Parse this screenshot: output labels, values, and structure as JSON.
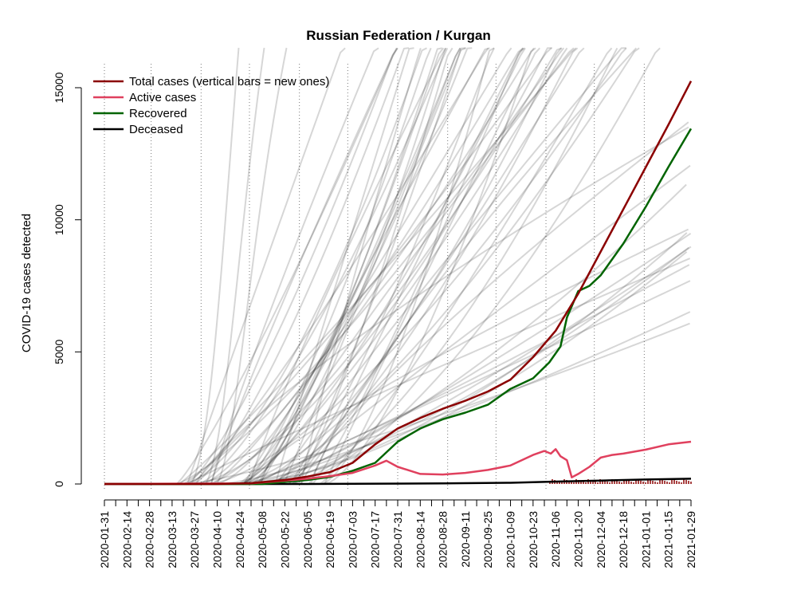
{
  "chart_data": {
    "type": "line",
    "title": "Russian Federation / Kurgan",
    "ylabel": "COVID-19 cases detected",
    "xlabel": "",
    "xlim": [
      "2020-01-31",
      "2021-01-29"
    ],
    "ylim": [
      0,
      15000
    ],
    "y_ticks": [
      0,
      5000,
      10000,
      15000
    ],
    "x_tick_labels": [
      "2020-01-31",
      "2020-02-14",
      "2020-02-28",
      "2020-03-13",
      "2020-03-27",
      "2020-04-10",
      "2020-04-24",
      "2020-05-08",
      "2020-05-22",
      "2020-06-05",
      "2020-06-19",
      "2020-07-03",
      "2020-07-17",
      "2020-07-31",
      "2020-08-14",
      "2020-08-28",
      "2020-09-11",
      "2020-09-25",
      "2020-10-09",
      "2020-10-23",
      "2020-11-06",
      "2020-11-20",
      "2020-12-04",
      "2020-12-18",
      "2021-01-01",
      "2021-01-15",
      "2021-01-29"
    ],
    "vertical_dotted_lines_at": [
      "2020-01-31",
      "2020-02-29",
      "2020-03-31",
      "2020-04-30",
      "2020-05-31",
      "2020-06-30",
      "2020-07-31",
      "2020-08-31",
      "2020-09-30",
      "2020-10-31",
      "2020-11-30",
      "2020-12-31"
    ],
    "legend": {
      "position": "top-left",
      "entries": [
        {
          "label": "Total cases (vertical bars = new ones)",
          "color": "#8b0000"
        },
        {
          "label": "Active cases",
          "color": "#e0405e"
        },
        {
          "label": "Recovered",
          "color": "#006400"
        },
        {
          "label": "Deceased",
          "color": "#000000"
        }
      ]
    },
    "series": [
      {
        "name": "Total cases (vertical bars = new ones)",
        "color": "#8b0000",
        "points": [
          [
            "2020-01-31",
            0
          ],
          [
            "2020-04-10",
            0
          ],
          [
            "2020-05-01",
            30
          ],
          [
            "2020-05-22",
            150
          ],
          [
            "2020-06-05",
            280
          ],
          [
            "2020-06-19",
            450
          ],
          [
            "2020-07-03",
            800
          ],
          [
            "2020-07-17",
            1500
          ],
          [
            "2020-07-31",
            2100
          ],
          [
            "2020-08-14",
            2500
          ],
          [
            "2020-08-28",
            2850
          ],
          [
            "2020-09-11",
            3150
          ],
          [
            "2020-09-25",
            3500
          ],
          [
            "2020-10-09",
            3950
          ],
          [
            "2020-10-23",
            4800
          ],
          [
            "2020-11-06",
            5800
          ],
          [
            "2020-11-20",
            7200
          ],
          [
            "2020-12-04",
            8800
          ],
          [
            "2020-12-18",
            10400
          ],
          [
            "2021-01-01",
            12000
          ],
          [
            "2021-01-15",
            13600
          ],
          [
            "2021-01-29",
            15250
          ]
        ]
      },
      {
        "name": "Active cases",
        "color": "#e0405e",
        "points": [
          [
            "2020-01-31",
            0
          ],
          [
            "2020-05-01",
            25
          ],
          [
            "2020-05-22",
            130
          ],
          [
            "2020-06-05",
            200
          ],
          [
            "2020-06-19",
            300
          ],
          [
            "2020-07-03",
            420
          ],
          [
            "2020-07-17",
            700
          ],
          [
            "2020-07-24",
            880
          ],
          [
            "2020-07-31",
            650
          ],
          [
            "2020-08-14",
            380
          ],
          [
            "2020-08-28",
            360
          ],
          [
            "2020-09-11",
            420
          ],
          [
            "2020-09-25",
            530
          ],
          [
            "2020-10-09",
            700
          ],
          [
            "2020-10-23",
            1100
          ],
          [
            "2020-10-30",
            1250
          ],
          [
            "2020-11-03",
            1150
          ],
          [
            "2020-11-06",
            1320
          ],
          [
            "2020-11-09",
            1050
          ],
          [
            "2020-11-13",
            900
          ],
          [
            "2020-11-16",
            250
          ],
          [
            "2020-11-20",
            380
          ],
          [
            "2020-11-27",
            650
          ],
          [
            "2020-12-04",
            1000
          ],
          [
            "2020-12-11",
            1100
          ],
          [
            "2020-12-18",
            1150
          ],
          [
            "2021-01-01",
            1300
          ],
          [
            "2021-01-15",
            1500
          ],
          [
            "2021-01-29",
            1600
          ]
        ]
      },
      {
        "name": "Recovered",
        "color": "#006400",
        "points": [
          [
            "2020-01-31",
            0
          ],
          [
            "2020-05-08",
            0
          ],
          [
            "2020-05-22",
            80
          ],
          [
            "2020-06-05",
            150
          ],
          [
            "2020-06-19",
            270
          ],
          [
            "2020-07-03",
            500
          ],
          [
            "2020-07-17",
            800
          ],
          [
            "2020-07-31",
            1600
          ],
          [
            "2020-08-14",
            2100
          ],
          [
            "2020-08-28",
            2450
          ],
          [
            "2020-09-11",
            2700
          ],
          [
            "2020-09-25",
            3000
          ],
          [
            "2020-10-09",
            3600
          ],
          [
            "2020-10-23",
            4000
          ],
          [
            "2020-11-02",
            4600
          ],
          [
            "2020-11-09",
            5200
          ],
          [
            "2020-11-13",
            6300
          ],
          [
            "2020-11-20",
            7300
          ],
          [
            "2020-11-27",
            7500
          ],
          [
            "2020-12-04",
            7900
          ],
          [
            "2020-12-18",
            9100
          ],
          [
            "2021-01-01",
            10500
          ],
          [
            "2021-01-15",
            12000
          ],
          [
            "2021-01-29",
            13450
          ]
        ]
      },
      {
        "name": "Deceased",
        "color": "#000000",
        "points": [
          [
            "2020-01-31",
            0
          ],
          [
            "2020-06-05",
            0
          ],
          [
            "2020-07-03",
            5
          ],
          [
            "2020-08-28",
            20
          ],
          [
            "2020-10-09",
            45
          ],
          [
            "2020-11-06",
            90
          ],
          [
            "2020-12-04",
            130
          ],
          [
            "2021-01-01",
            170
          ],
          [
            "2021-01-29",
            200
          ]
        ]
      }
    ]
  }
}
